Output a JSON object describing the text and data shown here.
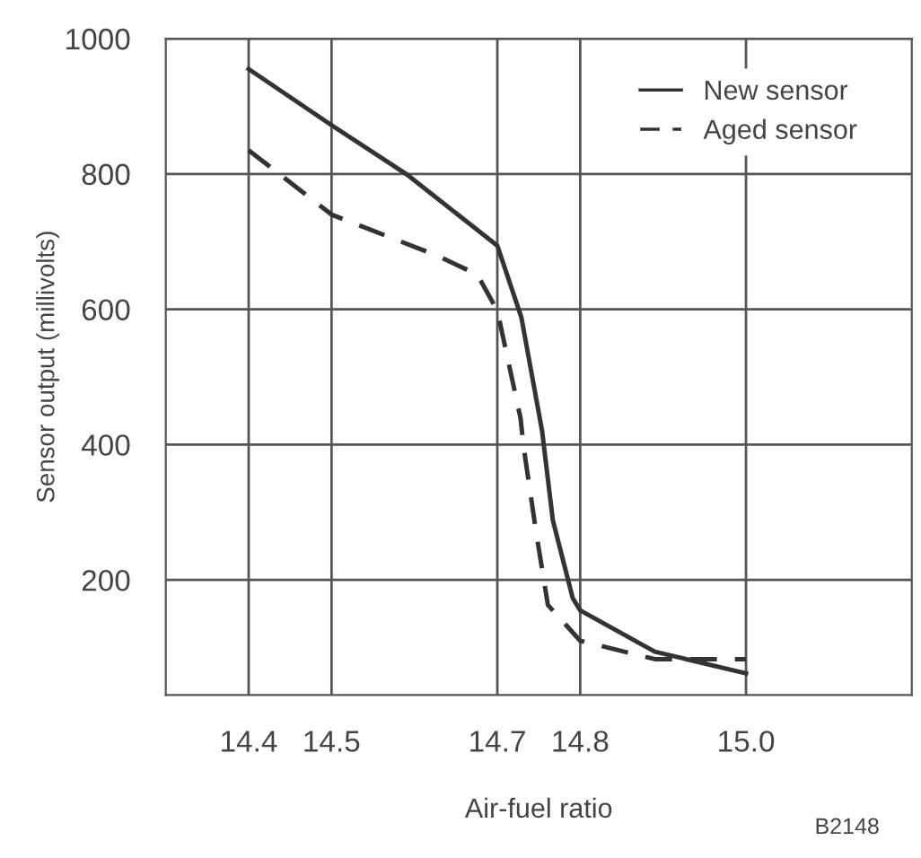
{
  "chart_data": {
    "type": "line",
    "xlabel": "Air-fuel ratio",
    "ylabel": "Sensor output (millivolts)",
    "annotations": [
      "B2148"
    ],
    "xlim": [
      14.3,
      15.2
    ],
    "xticks": [
      14.4,
      14.5,
      14.7,
      14.8,
      {
        "value": 15.0,
        "label": "15.0"
      }
    ],
    "ylim": [
      30,
      1000
    ],
    "yticks": [
      200,
      400,
      600,
      800,
      1000
    ],
    "grid": true,
    "legend": "top right",
    "marker": "none",
    "series": [
      {
        "name": "New sensor",
        "color": "#333333",
        "line_style": "solid",
        "x": [
          14.4,
          14.5,
          14.59,
          14.7,
          14.729,
          14.754,
          14.767,
          14.791,
          14.8,
          14.89,
          15.0
        ],
        "values": [
          955,
          872,
          800,
          694,
          588,
          420,
          288,
          173,
          155,
          94,
          62
        ]
      },
      {
        "name": "Aged sensor",
        "color": "#333333",
        "line_style": "dashed",
        "x": [
          14.4,
          14.5,
          14.63,
          14.676,
          14.7,
          14.728,
          14.732,
          14.747,
          14.761,
          14.8,
          14.89,
          15.0
        ],
        "values": [
          835,
          740,
          678,
          651,
          598,
          439,
          394,
          269,
          163,
          110,
          83,
          83
        ]
      }
    ]
  }
}
